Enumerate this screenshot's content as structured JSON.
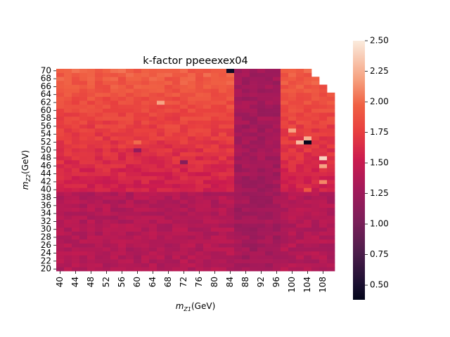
{
  "chart_data": {
    "type": "heatmap",
    "title": "k-factor ppeeexex04",
    "xlabel_main": "m",
    "xlabel_sub": "Z1",
    "xlabel_unit": "(GeV)",
    "ylabel_main": "m",
    "ylabel_sub": "Z2",
    "ylabel_unit": "(GeV)",
    "x_bins": [
      40,
      42,
      44,
      46,
      48,
      50,
      52,
      54,
      56,
      58,
      60,
      62,
      64,
      66,
      68,
      70,
      72,
      74,
      76,
      78,
      80,
      82,
      84,
      86,
      88,
      90,
      92,
      94,
      96,
      98,
      100,
      102,
      104,
      106,
      108,
      110
    ],
    "y_bins": [
      20,
      21,
      22,
      23,
      24,
      25,
      26,
      27,
      28,
      29,
      30,
      31,
      32,
      33,
      34,
      35,
      36,
      37,
      38,
      39,
      40,
      41,
      42,
      43,
      44,
      45,
      46,
      47,
      48,
      49,
      50,
      51,
      52,
      53,
      54,
      55,
      56,
      57,
      58,
      59,
      60,
      61,
      62,
      63,
      64,
      65,
      66,
      67,
      68,
      69,
      70
    ],
    "x_tick_labels": [
      "40",
      "44",
      "48",
      "52",
      "56",
      "60",
      "64",
      "68",
      "72",
      "76",
      "80",
      "84",
      "88",
      "92",
      "96",
      "100",
      "104",
      "108"
    ],
    "y_tick_labels": [
      "20",
      "22",
      "24",
      "26",
      "28",
      "30",
      "32",
      "34",
      "36",
      "38",
      "40",
      "42",
      "44",
      "46",
      "48",
      "50",
      "52",
      "54",
      "56",
      "58",
      "60",
      "62",
      "64",
      "66",
      "68",
      "70"
    ],
    "colorbar": {
      "min": 0.38,
      "max": 2.5,
      "ticks": [
        "0.50",
        "0.75",
        "1.00",
        "1.25",
        "1.50",
        "1.75",
        "2.00",
        "2.25",
        "2.50"
      ]
    },
    "anomalies": [
      {
        "x": 84,
        "y": 70,
        "value": 0.45
      },
      {
        "x": 104,
        "y": 52,
        "value": 0.4
      },
      {
        "x": 102,
        "y": 52,
        "value": 2.3
      },
      {
        "x": 104,
        "y": 53,
        "value": 2.25
      },
      {
        "x": 100,
        "y": 55,
        "value": 2.2
      },
      {
        "x": 108,
        "y": 48,
        "value": 2.4
      },
      {
        "x": 108,
        "y": 46,
        "value": 2.2
      },
      {
        "x": 108,
        "y": 42,
        "value": 2.1
      },
      {
        "x": 104,
        "y": 40,
        "value": 1.9
      },
      {
        "x": 66,
        "y": 62,
        "value": 2.2
      },
      {
        "x": 72,
        "y": 47,
        "value": 1.1
      },
      {
        "x": 60,
        "y": 50,
        "value": 1.2
      },
      {
        "x": 60,
        "y": 52,
        "value": 2.0
      }
    ]
  }
}
